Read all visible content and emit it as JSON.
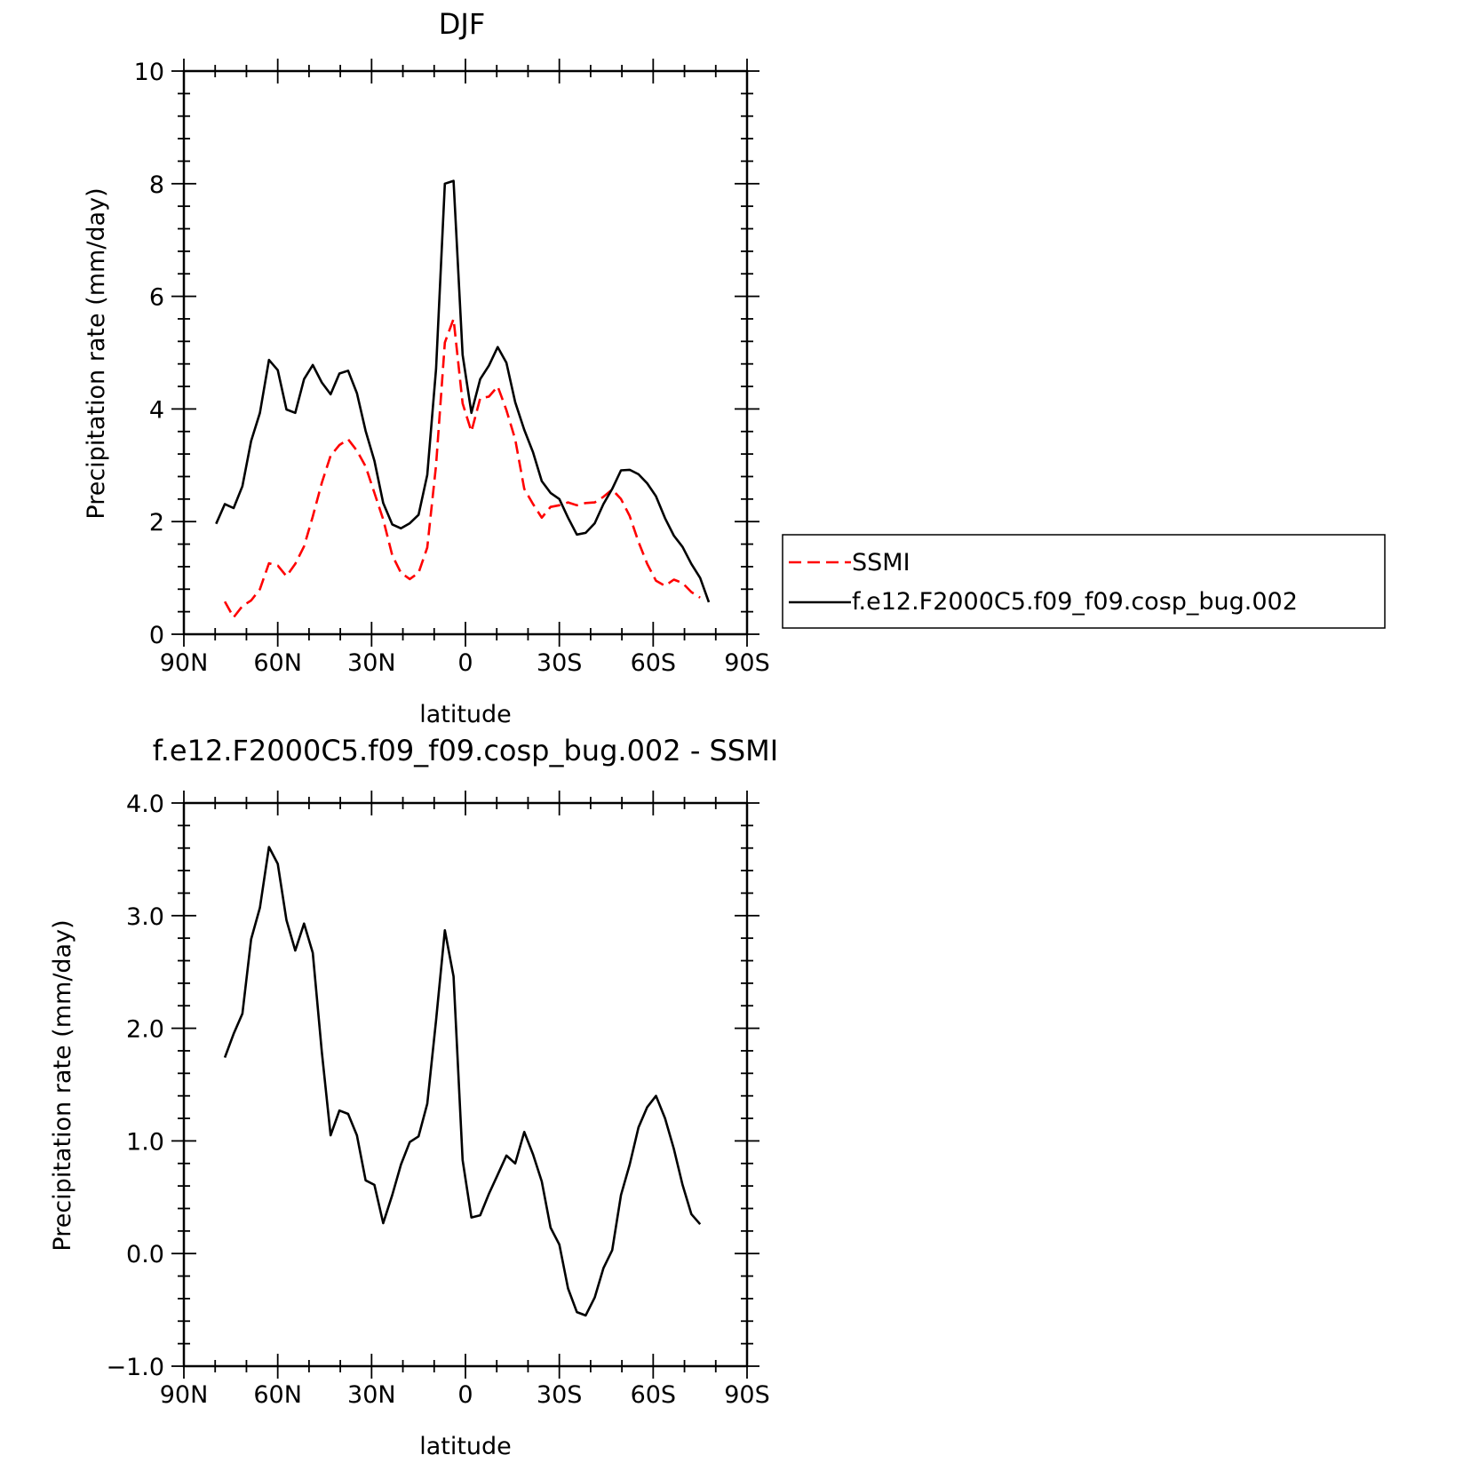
{
  "chart_data": [
    {
      "type": "line",
      "title": "DJF",
      "xlabel": "latitude",
      "ylabel": "Precipitation rate (mm/day)",
      "xlim": [
        90,
        -90
      ],
      "ylim": [
        0,
        10
      ],
      "x_ticks": [
        90,
        60,
        30,
        0,
        -30,
        -60,
        -90
      ],
      "x_tick_labels": [
        "90N",
        "60N",
        "30N",
        "0",
        "30S",
        "60S",
        "90S"
      ],
      "y_ticks": [
        0,
        2,
        4,
        6,
        8,
        10
      ],
      "y_tick_labels": [
        "0",
        "2",
        "4",
        "6",
        "8",
        "10"
      ],
      "legend": "right",
      "series": [
        {
          "name": "SSMI",
          "color": "#ff0000",
          "dash": "dashed",
          "x": [
            76.9,
            74.1,
            71.3,
            68.5,
            65.7,
            62.8,
            60.0,
            57.2,
            54.4,
            51.6,
            48.8,
            45.9,
            43.1,
            40.3,
            37.5,
            34.7,
            31.9,
            29.1,
            26.3,
            23.4,
            20.6,
            17.8,
            15.0,
            12.2,
            9.4,
            6.6,
            3.8,
            0.9,
            -1.9,
            -4.7,
            -7.5,
            -10.3,
            -13.1,
            -15.9,
            -18.8,
            -21.6,
            -24.4,
            -27.2,
            -30.0,
            -32.8,
            -35.6,
            -38.4,
            -41.3,
            -44.1,
            -46.9,
            -49.7,
            -52.5,
            -55.3,
            -58.1,
            -60.9,
            -63.8,
            -66.6,
            -69.4,
            -72.2,
            -75.0
          ],
          "y": [
            0.58,
            0.3,
            0.5,
            0.6,
            0.8,
            1.26,
            1.22,
            1.03,
            1.25,
            1.56,
            2.09,
            2.69,
            3.17,
            3.36,
            3.46,
            3.26,
            2.98,
            2.51,
            2.04,
            1.4,
            1.09,
            0.98,
            1.09,
            1.54,
            3.0,
            5.18,
            5.6,
            4.1,
            3.6,
            4.19,
            4.22,
            4.4,
            3.98,
            3.46,
            2.58,
            2.31,
            2.07,
            2.26,
            2.29,
            2.34,
            2.29,
            2.33,
            2.34,
            2.44,
            2.57,
            2.4,
            2.1,
            1.64,
            1.25,
            0.95,
            0.86,
            0.97,
            0.91,
            0.75,
            0.65
          ]
        },
        {
          "name": "f.e12.F2000C5.f09_f09.cosp_bug.002",
          "color": "#000000",
          "dash": "solid",
          "x": [
            79.7,
            76.9,
            74.1,
            71.3,
            68.5,
            65.7,
            62.8,
            60.0,
            57.2,
            54.4,
            51.6,
            48.8,
            45.9,
            43.1,
            40.3,
            37.5,
            34.7,
            31.9,
            29.1,
            26.3,
            23.4,
            20.6,
            17.8,
            15.0,
            12.2,
            9.4,
            6.6,
            3.8,
            0.9,
            -1.9,
            -4.7,
            -7.5,
            -10.3,
            -13.1,
            -15.9,
            -18.8,
            -21.6,
            -24.4,
            -27.2,
            -30.0,
            -32.8,
            -35.6,
            -38.4,
            -41.3,
            -44.1,
            -46.9,
            -49.7,
            -52.5,
            -55.3,
            -58.1,
            -60.9,
            -63.8,
            -66.6,
            -69.4,
            -72.2,
            -75.0,
            -77.8
          ],
          "y": [
            1.96,
            2.31,
            2.24,
            2.63,
            3.43,
            3.93,
            4.87,
            4.69,
            3.99,
            3.93,
            4.53,
            4.78,
            4.47,
            4.26,
            4.63,
            4.68,
            4.28,
            3.61,
            3.08,
            2.33,
            1.95,
            1.88,
            1.97,
            2.12,
            2.83,
            4.71,
            8.0,
            8.05,
            4.96,
            3.93,
            4.53,
            4.77,
            5.1,
            4.82,
            4.12,
            3.63,
            3.23,
            2.72,
            2.51,
            2.4,
            2.07,
            1.77,
            1.8,
            1.97,
            2.31,
            2.58,
            2.91,
            2.92,
            2.84,
            2.68,
            2.45,
            2.06,
            1.75,
            1.55,
            1.25,
            1.0,
            0.57
          ]
        }
      ]
    },
    {
      "type": "line",
      "title": "f.e12.F2000C5.f09_f09.cosp_bug.002 - SSMI",
      "xlabel": "latitude",
      "ylabel": "Precipitation rate (mm/day)",
      "xlim": [
        90,
        -90
      ],
      "ylim": [
        -1.0,
        4.0
      ],
      "x_ticks": [
        90,
        60,
        30,
        0,
        -30,
        -60,
        -90
      ],
      "x_tick_labels": [
        "90N",
        "60N",
        "30N",
        "0",
        "30S",
        "60S",
        "90S"
      ],
      "y_ticks": [
        -1.0,
        0.0,
        1.0,
        2.0,
        3.0,
        4.0
      ],
      "y_tick_labels": [
        "−1.0",
        "0.0",
        "1.0",
        "2.0",
        "3.0",
        "4.0"
      ],
      "series": [
        {
          "name": "",
          "color": "#000000",
          "dash": "solid",
          "x": [
            76.9,
            74.1,
            71.3,
            68.5,
            65.7,
            62.8,
            60.0,
            57.2,
            54.4,
            51.6,
            48.8,
            45.9,
            43.1,
            40.3,
            37.5,
            34.7,
            31.9,
            29.1,
            26.3,
            23.4,
            20.6,
            17.8,
            15.0,
            12.2,
            9.4,
            6.6,
            3.8,
            0.9,
            -1.9,
            -4.7,
            -7.5,
            -10.3,
            -13.1,
            -15.9,
            -18.8,
            -21.6,
            -24.4,
            -27.2,
            -30.0,
            -32.8,
            -35.6,
            -38.4,
            -41.3,
            -44.1,
            -46.9,
            -49.7,
            -52.5,
            -55.3,
            -58.1,
            -60.9,
            -63.8,
            -66.6,
            -69.4,
            -72.2,
            -75.0
          ],
          "y": [
            1.74,
            1.95,
            2.13,
            2.79,
            3.07,
            3.61,
            3.46,
            2.96,
            2.69,
            2.93,
            2.67,
            1.79,
            1.05,
            1.27,
            1.24,
            1.05,
            0.65,
            0.61,
            0.27,
            0.52,
            0.79,
            0.99,
            1.04,
            1.33,
            2.07,
            2.87,
            2.46,
            0.83,
            0.32,
            0.34,
            0.53,
            0.7,
            0.87,
            0.8,
            1.08,
            0.88,
            0.64,
            0.23,
            0.08,
            -0.31,
            -0.52,
            -0.55,
            -0.39,
            -0.13,
            0.03,
            0.52,
            0.79,
            1.12,
            1.3,
            1.4,
            1.2,
            0.93,
            0.61,
            0.35,
            0.26
          ]
        }
      ]
    }
  ]
}
